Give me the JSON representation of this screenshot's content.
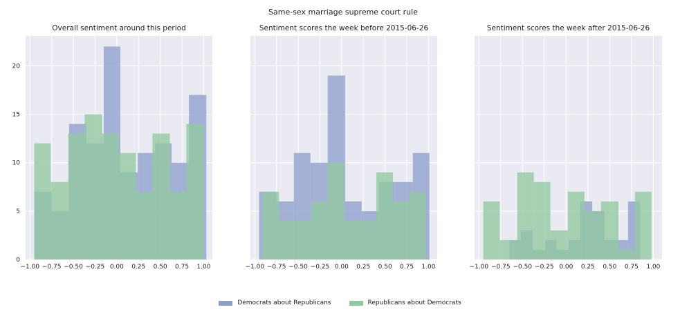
{
  "figure": {
    "suptitle": "Same-sex marriage supreme court rule"
  },
  "legend": {
    "items": [
      {
        "label": "Democrats about Republicans",
        "color": "#8c9fcc"
      },
      {
        "label": "Republicans about Democrats",
        "color": "#92c8a0"
      }
    ]
  },
  "colors": {
    "panel_bg": "#eaeaf2",
    "grid": "#ffffff",
    "dem": "#8c9fcc",
    "rep": "#92c8a0"
  },
  "chart_data": [
    {
      "type": "bar",
      "title": "Overall sentiment around this period",
      "xlim": [
        -1.05,
        1.1
      ],
      "ylim": [
        0,
        23.1
      ],
      "xticks": [
        -1.0,
        -0.75,
        -0.5,
        -0.25,
        0.0,
        0.25,
        0.5,
        0.75,
        1.0
      ],
      "xtick_labels": [
        "−1.00",
        "−0.75",
        "−0.50",
        "−0.25",
        "0.00",
        "0.25",
        "0.50",
        "0.75",
        "1.00"
      ],
      "yticks": [
        0,
        5,
        10,
        15,
        20
      ],
      "ytick_labels": [
        "0",
        "5",
        "10",
        "15",
        "20"
      ],
      "series": [
        {
          "name": "Democrats about Republicans",
          "bins": [
            [
              -0.95,
              -0.75
            ],
            [
              -0.75,
              -0.55
            ],
            [
              -0.55,
              -0.35
            ],
            [
              -0.35,
              -0.15
            ],
            [
              -0.15,
              0.04
            ],
            [
              0.04,
              0.24
            ],
            [
              0.24,
              0.44
            ],
            [
              0.44,
              0.63
            ],
            [
              0.63,
              0.83
            ],
            [
              0.83,
              1.03
            ]
          ],
          "values": [
            7,
            5,
            14,
            12,
            22,
            9,
            11,
            12,
            10,
            17
          ]
        },
        {
          "name": "Republicans about Democrats",
          "bins": [
            [
              -0.95,
              -0.76
            ],
            [
              -0.76,
              -0.56
            ],
            [
              -0.56,
              -0.37
            ],
            [
              -0.37,
              -0.17
            ],
            [
              -0.17,
              0.02
            ],
            [
              0.02,
              0.22
            ],
            [
              0.22,
              0.41
            ],
            [
              0.41,
              0.61
            ],
            [
              0.61,
              0.8
            ],
            [
              0.8,
              1.0
            ]
          ],
          "values": [
            12,
            8,
            13,
            15,
            13,
            11,
            7,
            13,
            7,
            14
          ]
        }
      ]
    },
    {
      "type": "bar",
      "title": "Sentiment scores the week before 2015-06-26",
      "xlim": [
        -1.05,
        1.1
      ],
      "ylim": [
        0,
        23.1
      ],
      "xticks": [
        -1.0,
        -0.75,
        -0.5,
        -0.25,
        0.0,
        0.25,
        0.5,
        0.75,
        1.0
      ],
      "xtick_labels": [
        "−1.00",
        "−0.75",
        "−0.50",
        "−0.25",
        "0.00",
        "0.25",
        "0.50",
        "0.75",
        "1.00"
      ],
      "series": [
        {
          "name": "Democrats about Republicans",
          "bins": [
            [
              -0.95,
              -0.75
            ],
            [
              -0.75,
              -0.55
            ],
            [
              -0.55,
              -0.36
            ],
            [
              -0.36,
              -0.16
            ],
            [
              -0.16,
              0.04
            ],
            [
              0.04,
              0.23
            ],
            [
              0.23,
              0.43
            ],
            [
              0.43,
              0.62
            ],
            [
              0.62,
              0.82
            ],
            [
              0.82,
              1.01
            ]
          ],
          "values": [
            7,
            6,
            11,
            10,
            19,
            6,
            5,
            8,
            8,
            11
          ]
        },
        {
          "name": "Republicans about Democrats",
          "bins": [
            [
              -0.91,
              -0.72
            ],
            [
              -0.72,
              -0.53
            ],
            [
              -0.53,
              -0.35
            ],
            [
              -0.35,
              -0.16
            ],
            [
              -0.16,
              0.03
            ],
            [
              0.03,
              0.22
            ],
            [
              0.22,
              0.4
            ],
            [
              0.4,
              0.59
            ],
            [
              0.59,
              0.78
            ],
            [
              0.78,
              0.97
            ]
          ],
          "values": [
            7,
            4,
            4,
            6,
            10,
            4,
            4,
            9,
            6,
            7
          ]
        }
      ]
    },
    {
      "type": "bar",
      "title": "Sentiment scores the week after 2015-06-26",
      "xlim": [
        -1.05,
        1.1
      ],
      "ylim": [
        0,
        23.1
      ],
      "xticks": [
        -1.0,
        -0.75,
        -0.5,
        -0.25,
        0.0,
        0.25,
        0.5,
        0.75,
        1.0
      ],
      "xtick_labels": [
        "−1.00",
        "−0.75",
        "−0.50",
        "−0.25",
        "0.00",
        "0.25",
        "0.50",
        "0.75",
        "1.00"
      ],
      "series": [
        {
          "name": "Democrats about Republicans",
          "bins": [
            [
              -0.65,
              -0.52
            ],
            [
              -0.52,
              -0.38
            ],
            [
              -0.38,
              -0.24
            ],
            [
              -0.24,
              -0.11
            ],
            [
              -0.11,
              0.03
            ],
            [
              0.03,
              0.16
            ],
            [
              0.16,
              0.3
            ],
            [
              0.3,
              0.44
            ],
            [
              0.44,
              0.58
            ],
            [
              0.58,
              0.71
            ],
            [
              0.71,
              0.85
            ]
          ],
          "values": [
            2,
            3,
            1,
            2,
            1,
            2,
            6,
            5,
            2,
            2,
            6
          ]
        },
        {
          "name": "Republicans about Democrats",
          "bins": [
            [
              -0.95,
              -0.76
            ],
            [
              -0.76,
              -0.56
            ],
            [
              -0.56,
              -0.37
            ],
            [
              -0.37,
              -0.18
            ],
            [
              -0.18,
              0.02
            ],
            [
              0.02,
              0.21
            ],
            [
              0.21,
              0.4
            ],
            [
              0.4,
              0.6
            ],
            [
              0.6,
              0.79
            ],
            [
              0.79,
              0.98
            ]
          ],
          "values": [
            6,
            2,
            9,
            8,
            3,
            7,
            5,
            6,
            1,
            7
          ]
        }
      ]
    }
  ]
}
